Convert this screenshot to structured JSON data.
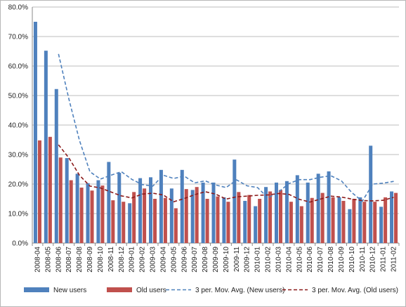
{
  "chart_data": {
    "type": "bar",
    "title": "",
    "xlabel": "",
    "ylabel": "",
    "ylim": [
      0,
      80
    ],
    "y_ticks": [
      "0.0%",
      "10.0%",
      "20.0%",
      "30.0%",
      "40.0%",
      "50.0%",
      "60.0%",
      "70.0%",
      "80.0%"
    ],
    "y_tick_values": [
      0,
      10,
      20,
      30,
      40,
      50,
      60,
      70,
      80
    ],
    "grid": true,
    "legend_position": "bottom",
    "categories": [
      "2008-04",
      "2008-05",
      "2008-06",
      "2008-07",
      "2008-08",
      "2008-09",
      "2008-10",
      "2008-11",
      "2008-12",
      "2009-01",
      "2009-02",
      "2009-03",
      "2009-04",
      "2009-05",
      "2009-06",
      "2009-07",
      "2009-08",
      "2009-09",
      "2009-10",
      "2009-11",
      "2009-12",
      "2010-01",
      "2010-02",
      "2010-03",
      "2010-04",
      "2010-05",
      "2010-06",
      "2010-07",
      "2010-08",
      "2010-09",
      "2010-10",
      "2010-11",
      "2010-12",
      "2011-01",
      "2011-02"
    ],
    "series": [
      {
        "name": "New users",
        "kind": "bar",
        "color": "#4f81bd",
        "values": [
          75.0,
          65.2,
          52.2,
          28.8,
          23.5,
          20.3,
          21.3,
          27.5,
          23.8,
          13.5,
          22.0,
          22.3,
          24.8,
          18.5,
          24.8,
          18.0,
          20.5,
          20.5,
          15.5,
          28.3,
          14.3,
          12.5,
          19.0,
          20.5,
          21.0,
          23.0,
          20.5,
          23.5,
          24.3,
          15.5,
          11.5,
          15.5,
          33.0,
          12.3,
          17.5
        ]
      },
      {
        "name": "Old users",
        "kind": "bar",
        "color": "#c0504d",
        "values": [
          34.8,
          36.0,
          29.0,
          21.3,
          18.8,
          17.8,
          19.5,
          14.5,
          14.0,
          17.3,
          18.5,
          15.0,
          15.3,
          11.8,
          18.3,
          19.0,
          15.0,
          15.8,
          14.0,
          17.3,
          16.3,
          15.0,
          17.5,
          18.0,
          14.0,
          12.5,
          15.3,
          17.0,
          15.5,
          14.3,
          15.0,
          14.0,
          14.0,
          15.5,
          17.0
        ]
      },
      {
        "name": "3 per. Mov. Avg. (New users)",
        "kind": "line",
        "dash": "dashed",
        "color": "#4f81bd",
        "values": [
          null,
          null,
          64.1,
          48.7,
          34.8,
          24.2,
          21.7,
          23.0,
          24.2,
          21.6,
          19.8,
          19.3,
          23.0,
          21.9,
          22.7,
          20.4,
          21.1,
          19.7,
          18.8,
          21.4,
          19.4,
          18.8,
          15.3,
          17.3,
          20.2,
          21.5,
          21.5,
          22.3,
          22.8,
          21.1,
          17.1,
          14.2,
          20.0,
          20.3,
          20.9
        ]
      },
      {
        "name": "3 per. Mov. Avg. (Old users)",
        "kind": "line",
        "dash": "dashed",
        "color": "#8b1a1a",
        "values": [
          null,
          null,
          33.3,
          28.8,
          23.0,
          19.3,
          18.7,
          17.3,
          16.0,
          15.3,
          16.6,
          16.9,
          16.3,
          14.0,
          15.1,
          16.4,
          17.4,
          16.6,
          14.9,
          15.7,
          15.9,
          16.2,
          16.3,
          16.8,
          16.5,
          14.8,
          13.9,
          14.9,
          15.9,
          15.6,
          14.9,
          14.4,
          14.3,
          14.5,
          15.5
        ]
      }
    ]
  }
}
